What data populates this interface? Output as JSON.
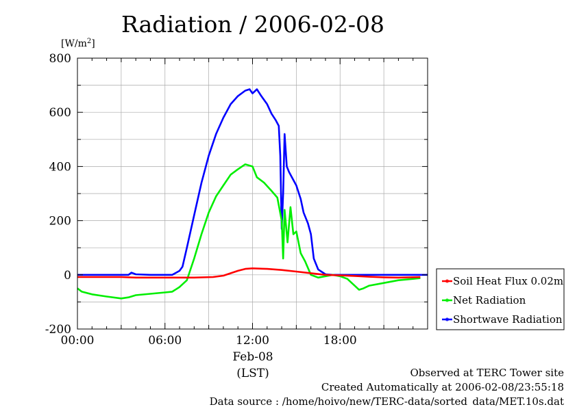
{
  "chart_data": {
    "type": "line",
    "title": "Radiation / 2006-02-08",
    "ylabel_unit": "[W/m",
    "ylabel_unit_sup": "2",
    "ylabel_unit_close": "]",
    "xlabel": "(LST)",
    "date_label": "Feb-08",
    "x_domain_hours": [
      0,
      24
    ],
    "ylim": [
      -200,
      800
    ],
    "yticks": [
      -200,
      0,
      200,
      400,
      600,
      800
    ],
    "ytick_labels": [
      "-200",
      "0",
      "200",
      "400",
      "600",
      "800"
    ],
    "xticks": [
      0,
      6,
      12,
      18
    ],
    "xtick_labels": [
      "00:00",
      "06:00",
      "12:00",
      "18:00"
    ],
    "grid": true,
    "legend_position": "bottom-right outside",
    "series": [
      {
        "name": "Soil Heat Flux 0.02m",
        "color": "#ff0000",
        "points": [
          [
            0,
            -8
          ],
          [
            3,
            -8
          ],
          [
            4,
            -10
          ],
          [
            6,
            -10
          ],
          [
            8,
            -10
          ],
          [
            9.3,
            -8
          ],
          [
            10,
            -3
          ],
          [
            11,
            15
          ],
          [
            11.5,
            22
          ],
          [
            12,
            24
          ],
          [
            13,
            22
          ],
          [
            14,
            18
          ],
          [
            15,
            12
          ],
          [
            16,
            6
          ],
          [
            17,
            0
          ],
          [
            18,
            -2
          ],
          [
            19,
            -4
          ],
          [
            20,
            -7
          ],
          [
            21,
            -9
          ],
          [
            22,
            -10
          ],
          [
            23.5,
            -8
          ]
        ]
      },
      {
        "name": "Net Radiation",
        "color": "#00ee00",
        "points": [
          [
            0,
            -50
          ],
          [
            0.3,
            -62
          ],
          [
            1,
            -72
          ],
          [
            2,
            -80
          ],
          [
            3,
            -87
          ],
          [
            3.5,
            -83
          ],
          [
            4,
            -75
          ],
          [
            5,
            -70
          ],
          [
            6,
            -65
          ],
          [
            6.5,
            -62
          ],
          [
            7,
            -45
          ],
          [
            7.5,
            -20
          ],
          [
            8,
            60
          ],
          [
            8.5,
            150
          ],
          [
            9,
            230
          ],
          [
            9.5,
            290
          ],
          [
            10,
            330
          ],
          [
            10.5,
            370
          ],
          [
            11,
            390
          ],
          [
            11.5,
            408
          ],
          [
            12,
            400
          ],
          [
            12.3,
            360
          ],
          [
            12.8,
            340
          ],
          [
            13.3,
            310
          ],
          [
            13.7,
            285
          ],
          [
            14,
            200
          ],
          [
            14.1,
            60
          ],
          [
            14.2,
            240
          ],
          [
            14.4,
            120
          ],
          [
            14.6,
            250
          ],
          [
            14.8,
            150
          ],
          [
            15,
            160
          ],
          [
            15.3,
            80
          ],
          [
            15.6,
            50
          ],
          [
            16,
            0
          ],
          [
            16.5,
            -10
          ],
          [
            17,
            -5
          ],
          [
            17.5,
            0
          ],
          [
            18,
            -5
          ],
          [
            18.5,
            -15
          ],
          [
            19,
            -40
          ],
          [
            19.3,
            -55
          ],
          [
            19.6,
            -50
          ],
          [
            20,
            -40
          ],
          [
            21,
            -30
          ],
          [
            22,
            -20
          ],
          [
            23,
            -15
          ],
          [
            23.5,
            -12
          ]
        ]
      },
      {
        "name": "Shortwave Radiation",
        "color": "#0000ff",
        "points": [
          [
            0,
            0
          ],
          [
            3.5,
            0
          ],
          [
            3.7,
            8
          ],
          [
            4,
            2
          ],
          [
            5,
            0
          ],
          [
            6.5,
            0
          ],
          [
            7,
            15
          ],
          [
            7.2,
            30
          ],
          [
            7.5,
            100
          ],
          [
            8,
            220
          ],
          [
            8.5,
            340
          ],
          [
            9,
            440
          ],
          [
            9.5,
            520
          ],
          [
            10,
            580
          ],
          [
            10.5,
            630
          ],
          [
            11,
            660
          ],
          [
            11.5,
            680
          ],
          [
            11.8,
            685
          ],
          [
            12,
            670
          ],
          [
            12.3,
            685
          ],
          [
            12.6,
            660
          ],
          [
            13,
            630
          ],
          [
            13.3,
            595
          ],
          [
            13.6,
            570
          ],
          [
            13.8,
            550
          ],
          [
            13.9,
            440
          ],
          [
            14,
            170
          ],
          [
            14.1,
            300
          ],
          [
            14.2,
            520
          ],
          [
            14.35,
            400
          ],
          [
            14.5,
            380
          ],
          [
            14.7,
            360
          ],
          [
            15,
            330
          ],
          [
            15.3,
            280
          ],
          [
            15.5,
            230
          ],
          [
            15.8,
            190
          ],
          [
            16,
            150
          ],
          [
            16.2,
            60
          ],
          [
            16.5,
            20
          ],
          [
            17,
            2
          ],
          [
            17.5,
            0
          ],
          [
            18,
            0
          ],
          [
            24,
            0
          ]
        ]
      }
    ]
  },
  "footer": {
    "line1": "Observed at TERC Tower site",
    "line2": "Created Automatically at 2006-02-08/23:55:18",
    "line3": "Data source : /home/hoivo/new/TERC-data/sorted_data/MET.10s.dat"
  }
}
